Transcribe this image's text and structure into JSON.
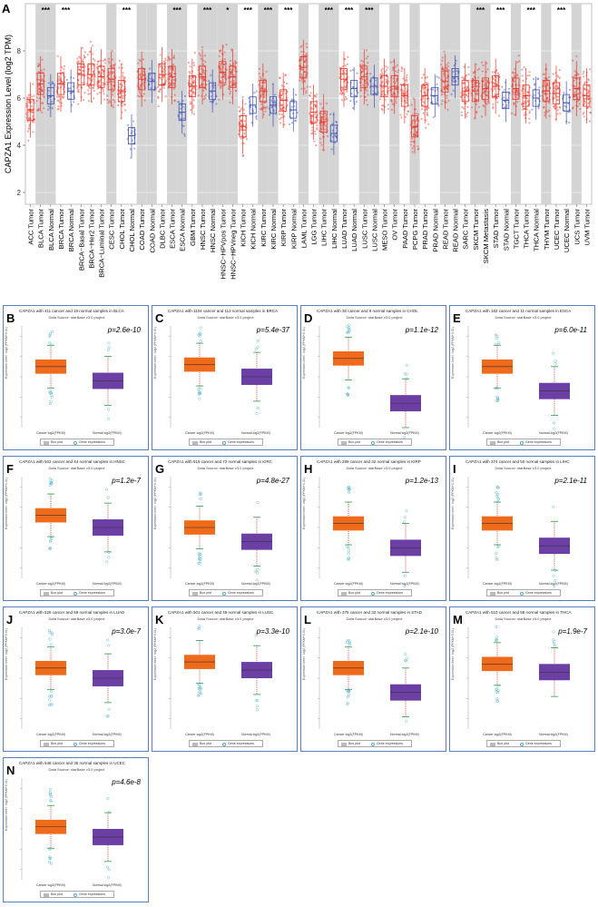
{
  "panel_label_A": "A",
  "chart_data": [
    {
      "type": "box",
      "panel": "A",
      "ylabel": "CAPZA1 Expression Level (log2 TPM)",
      "ylim": [
        1.5,
        10
      ],
      "y_ticks": [
        2,
        4,
        6,
        8
      ],
      "categories": [
        "ACC Tumor",
        "BLCA Tumor",
        "BLCA Normal",
        "BRCA Tumor",
        "BRCA Normal",
        "BRCA−Basal Tumor",
        "BRCA−Her2 Tumor",
        "BRCA−Luminal Tumor",
        "CESC Tumor",
        "CHOL Tumor",
        "CHOL Normal",
        "COAD Tumor",
        "COAD Normal",
        "DLBC Tumor",
        "ESCA Tumor",
        "ESCA Normal",
        "GBM Tumor",
        "HNSC Tumor",
        "HNSC Normal",
        "HNSC−HPVpos Tumor",
        "HNSC−HPVneg Tumor",
        "KICH Tumor",
        "KICH Normal",
        "KIRC Tumor",
        "KIRC Normal",
        "KIRP Tumor",
        "KIRP Normal",
        "LAML Tumor",
        "LGG Tumor",
        "LIHC Tumor",
        "LIHC Normal",
        "LUAD Tumor",
        "LUAD Normal",
        "LUSC Tumor",
        "LUSC Normal",
        "MESO Tumor",
        "OV Tumor",
        "PAAD Tumor",
        "PCPG Tumor",
        "PRAD Tumor",
        "PRAD Normal",
        "READ Tumor",
        "READ Normal",
        "SARC Tumor",
        "SKCM Tumor",
        "SKCM Metastasis",
        "STAD Tumor",
        "STAD Normal",
        "TGCT Tumor",
        "THCA Tumor",
        "THCA Normal",
        "THYM Tumor",
        "UCEC Tumor",
        "UCEC Normal",
        "UCS Tumor",
        "UVM Tumor"
      ],
      "medians": [
        5.5,
        6.6,
        6.1,
        6.6,
        6.3,
        7.0,
        7.0,
        6.9,
        6.8,
        6.3,
        4.4,
        6.8,
        6.7,
        7.0,
        6.9,
        5.4,
        6.5,
        6.9,
        6.3,
        7.1,
        6.9,
        4.8,
        5.7,
        6.3,
        5.7,
        5.9,
        5.5,
        7.3,
        5.4,
        5.0,
        4.5,
        6.8,
        6.4,
        6.9,
        6.5,
        6.5,
        6.5,
        6.1,
        4.8,
        6.1,
        6.1,
        6.7,
        6.9,
        6.3,
        6.3,
        6.4,
        6.5,
        5.9,
        6.4,
        6.1,
        6.0,
        6.3,
        6.2,
        5.8,
        6.4,
        6.1
      ],
      "significance": [
        "",
        "***",
        "",
        "***",
        "",
        "",
        "",
        "",
        "",
        "***",
        "",
        "",
        "",
        "",
        "***",
        "",
        "",
        "***",
        "",
        "*",
        "",
        "***",
        "",
        "***",
        "",
        "***",
        "",
        "",
        "",
        "***",
        "",
        "***",
        "",
        "***",
        "",
        "",
        "",
        "",
        "",
        "",
        "",
        "",
        "",
        "",
        "***",
        "",
        "***",
        "",
        "",
        "***",
        "",
        "",
        "***",
        "",
        "",
        ""
      ]
    },
    {
      "type": "box",
      "panel": "B",
      "title": "CAPZA1 with 411 cancer and 19 normal samples in BLCA",
      "source": "Data Source: starBase v3.0 project",
      "p": "p=2.6e-10",
      "medians": [
        5.5,
        4.8
      ]
    },
    {
      "type": "box",
      "panel": "C",
      "title": "CAPZA1 with 1104 cancer and 113 normal samples in BRCA",
      "source": "Data Source: starBase v3.0 project",
      "p": "p=5.4e-37",
      "medians": [
        5.6,
        5.0
      ]
    },
    {
      "type": "box",
      "panel": "D",
      "title": "CAPZA1 with 36 cancer and 9 normal samples in CHOL",
      "source": "Data Source: starBase v3.0 project",
      "p": "p=1.1e-12",
      "medians": [
        5.9,
        3.7
      ]
    },
    {
      "type": "box",
      "panel": "E",
      "title": "CAPZA1 with 162 cancer and 11 normal samples in ESCA",
      "source": "Data Source: starBase v3.0 project",
      "p": "p=6.0e-11",
      "medians": [
        5.5,
        4.3
      ]
    },
    {
      "type": "box",
      "panel": "F",
      "title": "CAPZA1 with 502 cancer and 44 normal samples in HNSC",
      "source": "Data Source: starBase v3.0 project",
      "p": "p=1.2e-7",
      "medians": [
        5.6,
        5.0
      ]
    },
    {
      "type": "box",
      "panel": "G",
      "title": "CAPZA1 with 515 cancer and 72 normal samples in KIRC",
      "source": "Data Source: starBase v3.0 project",
      "p": "p=4.8e-27",
      "medians": [
        5.0,
        4.3
      ]
    },
    {
      "type": "box",
      "panel": "H",
      "title": "CAPZA1 with 289 cancer and 32 normal samples in KIRP",
      "source": "Data Source: starBase v3.0 project",
      "p": "p=1.2e-13",
      "medians": [
        5.2,
        4.0
      ]
    },
    {
      "type": "box",
      "panel": "I",
      "title": "CAPZA1 with 374 cancer and 50 normal samples in LIHC",
      "source": "Data Source: starBase v3.0 project",
      "p": "p=2.1e-11",
      "medians": [
        5.2,
        4.1
      ]
    },
    {
      "type": "box",
      "panel": "J",
      "title": "CAPZA1 with 526 cancer and 59 normal samples in LUAD",
      "source": "Data Source: starBase v3.0 project",
      "p": "p=3.0e-7",
      "medians": [
        5.5,
        5.0
      ]
    },
    {
      "type": "box",
      "panel": "K",
      "title": "CAPZA1 with 501 cancer and 49 normal samples in LUSC",
      "source": "Data Source: starBase v3.0 project",
      "p": "p=3.3e-10",
      "medians": [
        5.8,
        5.4
      ]
    },
    {
      "type": "box",
      "panel": "L",
      "title": "CAPZA1 with 375 cancer and 32 normal samples in STAD",
      "source": "Data Source: starBase v3.0 project",
      "p": "p=2.1e-10",
      "medians": [
        5.5,
        4.3
      ]
    },
    {
      "type": "box",
      "panel": "M",
      "title": "CAPZA1 with 510 cancer and 58 normal samples in THCA",
      "source": "Data Source: starBase v3.0 project",
      "p": "p=1.9e-7",
      "medians": [
        5.7,
        5.3
      ]
    },
    {
      "type": "box",
      "panel": "N",
      "title": "CAPZA1 with 548 cancer and 35 normal samples in UCEC",
      "source": "Data Source: starBase v3.0 project",
      "p": "p=4.6e-8",
      "medians": [
        5.1,
        4.6
      ]
    }
  ],
  "sub_panels_common": {
    "cancer_label": "Cancer log2(FPKM)",
    "normal_label": "Normal log2(FPKM)",
    "legend_box": "Box plot",
    "legend_gene": "Gene expressions",
    "ylabel": "Expression level : log2 (FPKM+0.01)"
  },
  "colors": {
    "tumor": "#e8392c",
    "normal": "#3b4fb3",
    "cancer_box": "#ef6a1a",
    "normal_box": "#6b3fa3",
    "panel_border": "#5a7fc0",
    "shade": "#d4d4d4"
  }
}
